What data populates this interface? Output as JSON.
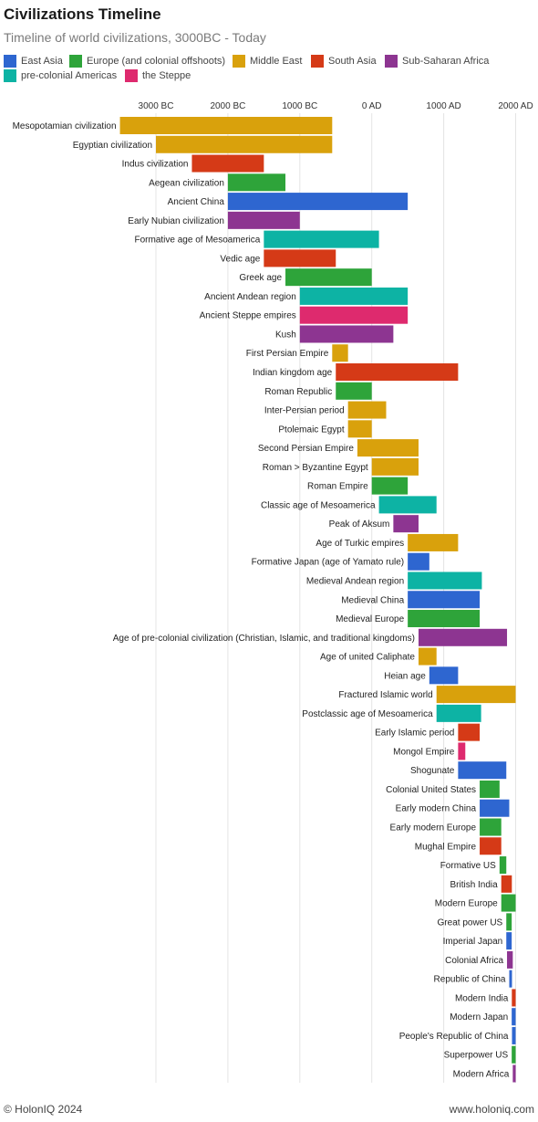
{
  "header": {
    "title": "Civilizations Timeline",
    "subtitle": "Timeline of world civilizations, 3000BC - Today"
  },
  "legend": [
    {
      "name": "East Asia",
      "color": "#2e66d0"
    },
    {
      "name": "Europe (and colonial offshoots)",
      "color": "#2ea43a"
    },
    {
      "name": "Middle East",
      "color": "#d9a10c"
    },
    {
      "name": "South Asia",
      "color": "#d53a17"
    },
    {
      "name": "Sub-Saharan Africa",
      "color": "#8d3591"
    },
    {
      "name": "pre-colonial Americas",
      "color": "#0db3a4"
    },
    {
      "name": "the Steppe",
      "color": "#de2a6e"
    }
  ],
  "footer": {
    "left": "© HolonIQ 2024",
    "right": "www.holoniq.com"
  },
  "chart_data": {
    "type": "bar",
    "orientation": "horizontal",
    "grid": true,
    "x_axis_position": "top",
    "xlim": [
      -3500,
      2000
    ],
    "ticks": [
      {
        "value": -3000,
        "label": "3000 BC"
      },
      {
        "value": -2000,
        "label": "2000 BC"
      },
      {
        "value": -1000,
        "label": "1000 BC"
      },
      {
        "value": 0,
        "label": "0 AD"
      },
      {
        "value": 1000,
        "label": "1000 AD"
      },
      {
        "value": 2000,
        "label": "2000 AD"
      }
    ],
    "bars": [
      {
        "label": "Mesopotamian civilization",
        "region": "Middle East",
        "start": -3500,
        "end": -550
      },
      {
        "label": "Egyptian civilization",
        "region": "Middle East",
        "start": -3000,
        "end": -550
      },
      {
        "label": "Indus civilization",
        "region": "South Asia",
        "start": -2500,
        "end": -1500
      },
      {
        "label": "Aegean civilization",
        "region": "Europe (and colonial offshoots)",
        "start": -2000,
        "end": -1200
      },
      {
        "label": "Ancient China",
        "region": "East Asia",
        "start": -2000,
        "end": 500
      },
      {
        "label": "Early Nubian civilization",
        "region": "Sub-Saharan Africa",
        "start": -2000,
        "end": -1000
      },
      {
        "label": "Formative age of Mesoamerica",
        "region": "pre-colonial Americas",
        "start": -1500,
        "end": 100
      },
      {
        "label": "Vedic age",
        "region": "South Asia",
        "start": -1500,
        "end": -500
      },
      {
        "label": "Greek age",
        "region": "Europe (and colonial offshoots)",
        "start": -1200,
        "end": 0
      },
      {
        "label": "Ancient Andean region",
        "region": "pre-colonial Americas",
        "start": -1000,
        "end": 500
      },
      {
        "label": "Ancient Steppe empires",
        "region": "the Steppe",
        "start": -1000,
        "end": 500
      },
      {
        "label": "Kush",
        "region": "Sub-Saharan Africa",
        "start": -1000,
        "end": 300
      },
      {
        "label": "First Persian Empire",
        "region": "Middle East",
        "start": -550,
        "end": -330
      },
      {
        "label": "Indian kingdom age",
        "region": "South Asia",
        "start": -500,
        "end": 1200
      },
      {
        "label": "Roman Republic",
        "region": "Europe (and colonial offshoots)",
        "start": -500,
        "end": 0
      },
      {
        "label": "Inter-Persian period",
        "region": "Middle East",
        "start": -330,
        "end": 200
      },
      {
        "label": "Ptolemaic Egypt",
        "region": "Middle East",
        "start": -330,
        "end": 0
      },
      {
        "label": "Second Persian Empire",
        "region": "Middle East",
        "start": -200,
        "end": 650
      },
      {
        "label": "Roman > Byzantine Egypt",
        "region": "Middle East",
        "start": 0,
        "end": 650
      },
      {
        "label": "Roman Empire",
        "region": "Europe (and colonial offshoots)",
        "start": 0,
        "end": 500
      },
      {
        "label": "Classic age of Mesoamerica",
        "region": "pre-colonial Americas",
        "start": 100,
        "end": 900
      },
      {
        "label": "Peak of Aksum",
        "region": "Sub-Saharan Africa",
        "start": 300,
        "end": 650
      },
      {
        "label": "Age of Turkic empires",
        "region": "Middle East",
        "start": 500,
        "end": 1200
      },
      {
        "label": "Formative Japan (age of Yamato rule)",
        "region": "East Asia",
        "start": 500,
        "end": 800
      },
      {
        "label": "Medieval Andean region",
        "region": "pre-colonial Americas",
        "start": 500,
        "end": 1530
      },
      {
        "label": "Medieval China",
        "region": "East Asia",
        "start": 500,
        "end": 1500
      },
      {
        "label": "Medieval Europe",
        "region": "Europe (and colonial offshoots)",
        "start": 500,
        "end": 1500
      },
      {
        "label": "Age of pre-colonial civilization (Christian, Islamic, and traditional kingdoms)",
        "region": "Sub-Saharan Africa",
        "start": 650,
        "end": 1880
      },
      {
        "label": "Age of united Caliphate",
        "region": "Middle East",
        "start": 650,
        "end": 900
      },
      {
        "label": "Heian age",
        "region": "East Asia",
        "start": 800,
        "end": 1200
      },
      {
        "label": "Fractured Islamic world",
        "region": "Middle East",
        "start": 900,
        "end": 2000
      },
      {
        "label": "Postclassic age of Mesoamerica",
        "region": "pre-colonial Americas",
        "start": 900,
        "end": 1520
      },
      {
        "label": "Early Islamic period",
        "region": "South Asia",
        "start": 1200,
        "end": 1500
      },
      {
        "label": "Mongol Empire",
        "region": "the Steppe",
        "start": 1200,
        "end": 1300
      },
      {
        "label": "Shogunate",
        "region": "East Asia",
        "start": 1200,
        "end": 1870
      },
      {
        "label": "Colonial United States",
        "region": "Europe (and colonial offshoots)",
        "start": 1500,
        "end": 1776
      },
      {
        "label": "Early modern China",
        "region": "East Asia",
        "start": 1500,
        "end": 1911
      },
      {
        "label": "Early modern Europe",
        "region": "Europe (and colonial offshoots)",
        "start": 1500,
        "end": 1800
      },
      {
        "label": "Mughal Empire",
        "region": "South Asia",
        "start": 1500,
        "end": 1800
      },
      {
        "label": "Formative US",
        "region": "Europe (and colonial offshoots)",
        "start": 1776,
        "end": 1870
      },
      {
        "label": "British India",
        "region": "South Asia",
        "start": 1800,
        "end": 1947
      },
      {
        "label": "Modern Europe",
        "region": "Europe (and colonial offshoots)",
        "start": 1800,
        "end": 2000
      },
      {
        "label": "Great power US",
        "region": "Europe (and colonial offshoots)",
        "start": 1870,
        "end": 1945
      },
      {
        "label": "Imperial Japan",
        "region": "East Asia",
        "start": 1870,
        "end": 1945
      },
      {
        "label": "Colonial Africa",
        "region": "Sub-Saharan Africa",
        "start": 1880,
        "end": 1960
      },
      {
        "label": "Republic of China",
        "region": "East Asia",
        "start": 1911,
        "end": 1949
      },
      {
        "label": "Modern India",
        "region": "South Asia",
        "start": 1947,
        "end": 2000
      },
      {
        "label": "Modern Japan",
        "region": "East Asia",
        "start": 1945,
        "end": 2000
      },
      {
        "label": "People's Republic of China",
        "region": "East Asia",
        "start": 1949,
        "end": 2000
      },
      {
        "label": "Superpower US",
        "region": "Europe (and colonial offshoots)",
        "start": 1945,
        "end": 2000
      },
      {
        "label": "Modern Africa",
        "region": "Sub-Saharan Africa",
        "start": 1960,
        "end": 2000
      }
    ]
  }
}
